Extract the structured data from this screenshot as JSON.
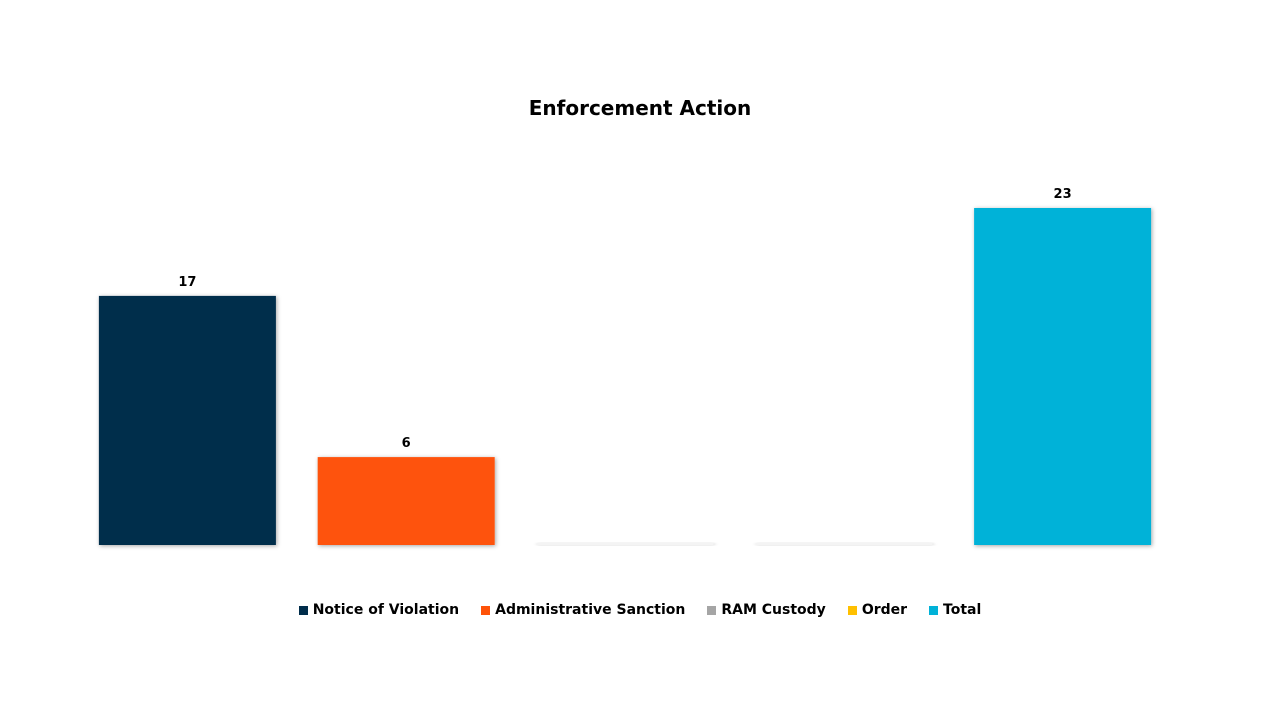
{
  "chart_data": {
    "type": "bar",
    "title": "Enforcement Action",
    "xlabel": "",
    "ylabel": "",
    "ylim": [
      0,
      23
    ],
    "grid": false,
    "legend_position": "bottom",
    "series": [
      {
        "name": "Notice of Violation",
        "values": [
          17
        ],
        "color": "#002D4B",
        "label": "17"
      },
      {
        "name": "Administrative Sanction",
        "values": [
          6
        ],
        "color": "#FE5309",
        "label": "6"
      },
      {
        "name": "RAM Custody",
        "values": [
          0
        ],
        "color": "#A5A5A5",
        "label": ""
      },
      {
        "name": "Order",
        "values": [
          0
        ],
        "color": "#FFC000",
        "label": ""
      },
      {
        "name": "Total",
        "values": [
          23
        ],
        "color": "#00B2D8",
        "label": "23"
      }
    ]
  }
}
